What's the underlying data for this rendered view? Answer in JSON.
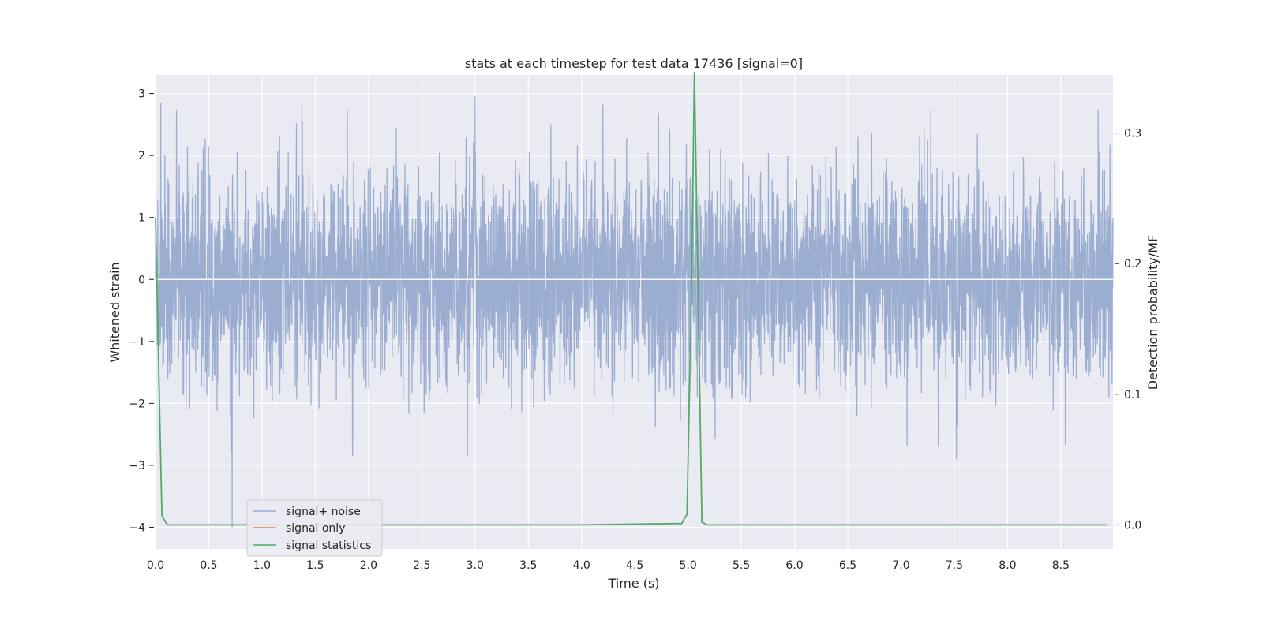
{
  "chart_data": {
    "type": "line",
    "title": "stats at each timestep for test data 17436 [signal=0]",
    "xlabel": "Time (s)",
    "ylabel": "Whitened strain",
    "ylabel_right": "Detection probability/MF",
    "xlim": [
      0.0,
      8.99
    ],
    "ylim": [
      -4.35,
      3.3
    ],
    "ylim_right": [
      -0.0185,
      0.3445
    ],
    "xticks": [
      "0.0",
      "0.5",
      "1.0",
      "1.5",
      "2.0",
      "2.5",
      "3.0",
      "3.5",
      "4.0",
      "4.5",
      "5.0",
      "5.5",
      "6.0",
      "6.5",
      "7.0",
      "7.5",
      "8.0",
      "8.5"
    ],
    "yticks": [
      "3",
      "2",
      "1",
      "0",
      "−1",
      "−2",
      "−3",
      "−4"
    ],
    "yticks_right": [
      "0.3",
      "0.2",
      "0.1",
      "0.0"
    ],
    "grid": true,
    "legend_position": "lower left",
    "series": [
      {
        "name": "signal+ noise",
        "color": "#4c72b0",
        "axis": "left",
        "description_values": "dense whitened noise, roughly zero-mean, spanning about -2.9 to 3.0 with one dip to -4.0 near t=0.72",
        "t_range": [
          0.0,
          8.99
        ],
        "notable_extremes": [
          {
            "t": 0.72,
            "y": -4.0
          },
          {
            "t": 3.0,
            "y": 2.95
          },
          {
            "t": 4.2,
            "y": 2.82
          },
          {
            "t": 1.8,
            "y": 2.75
          },
          {
            "t": 8.85,
            "y": 2.73
          },
          {
            "t": 7.52,
            "y": -2.9
          },
          {
            "t": 7.35,
            "y": -2.7
          }
        ]
      },
      {
        "name": "signal only",
        "color": "#dd8452",
        "axis": "left",
        "x": [
          0.0,
          8.99
        ],
        "y": [
          0.0,
          0.0
        ]
      },
      {
        "name": "signal statistics",
        "color": "#55a868",
        "axis": "right",
        "x": [
          0.0,
          0.06,
          0.11,
          0.5,
          1.0,
          2.0,
          3.0,
          4.0,
          4.94,
          4.99,
          5.03,
          5.06,
          5.09,
          5.13,
          5.18,
          5.3,
          5.42,
          5.5,
          6.0,
          7.0,
          8.0,
          8.94
        ],
        "y": [
          0.235,
          0.007,
          0.0,
          0.0,
          0.0,
          0.0,
          0.0,
          0.0,
          0.001,
          0.008,
          0.17,
          0.347,
          0.2,
          0.002,
          0.0,
          0.0,
          0.0,
          0.0,
          0.0,
          0.0,
          0.0,
          0.0
        ]
      }
    ]
  }
}
